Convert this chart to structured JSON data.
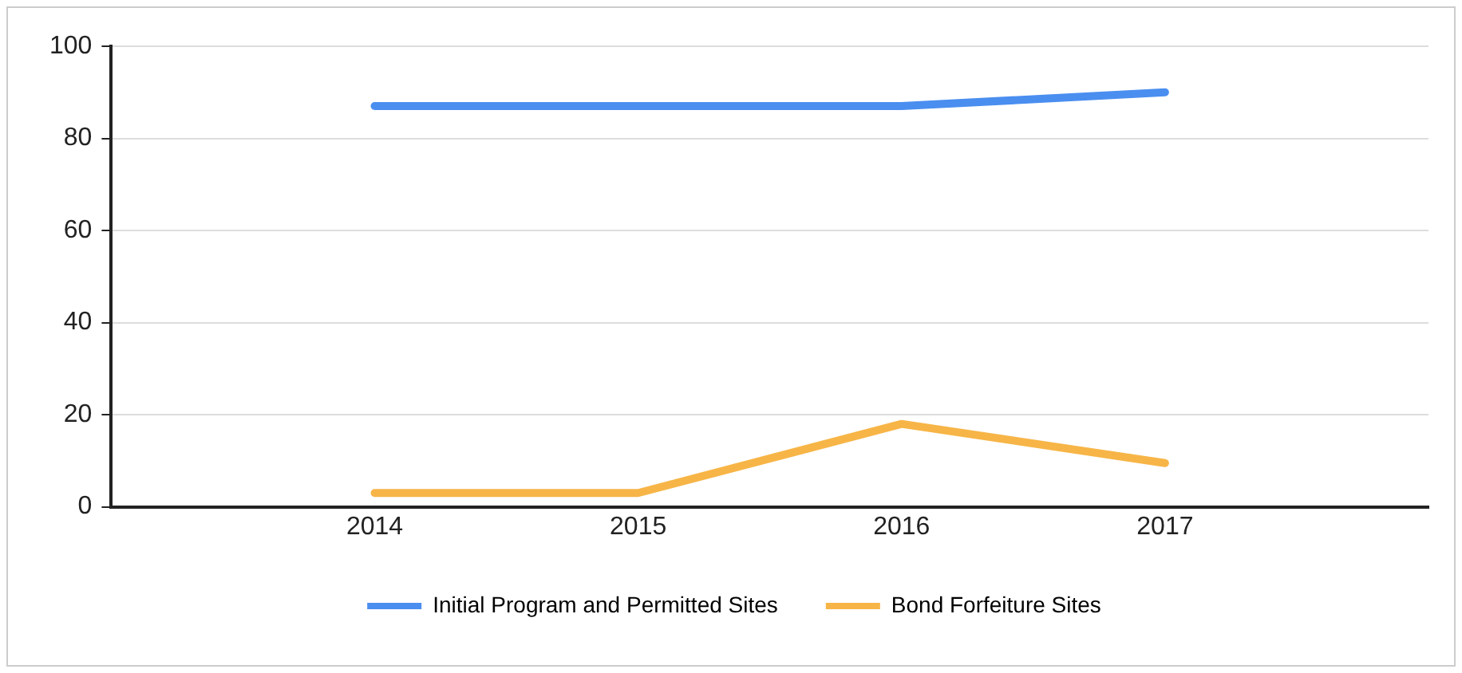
{
  "chart_data": {
    "type": "line",
    "x": [
      2014,
      2015,
      2016,
      2017
    ],
    "xlim": [
      2013,
      2018
    ],
    "xticks": [
      2014,
      2015,
      2016,
      2017
    ],
    "ylim": [
      0,
      100
    ],
    "yticks": [
      0,
      20,
      40,
      60,
      80,
      100
    ],
    "grid": "y",
    "legend": "bottom",
    "marker": "none",
    "line_style": "solid",
    "series": [
      {
        "name": "Initial Program and Permitted Sites",
        "color": "#4a8ef0",
        "values": [
          87,
          87,
          87,
          90
        ]
      },
      {
        "name": "Bond Forfeiture Sites",
        "color": "#f7b547",
        "values": [
          3,
          3,
          18,
          9.5
        ]
      }
    ]
  }
}
